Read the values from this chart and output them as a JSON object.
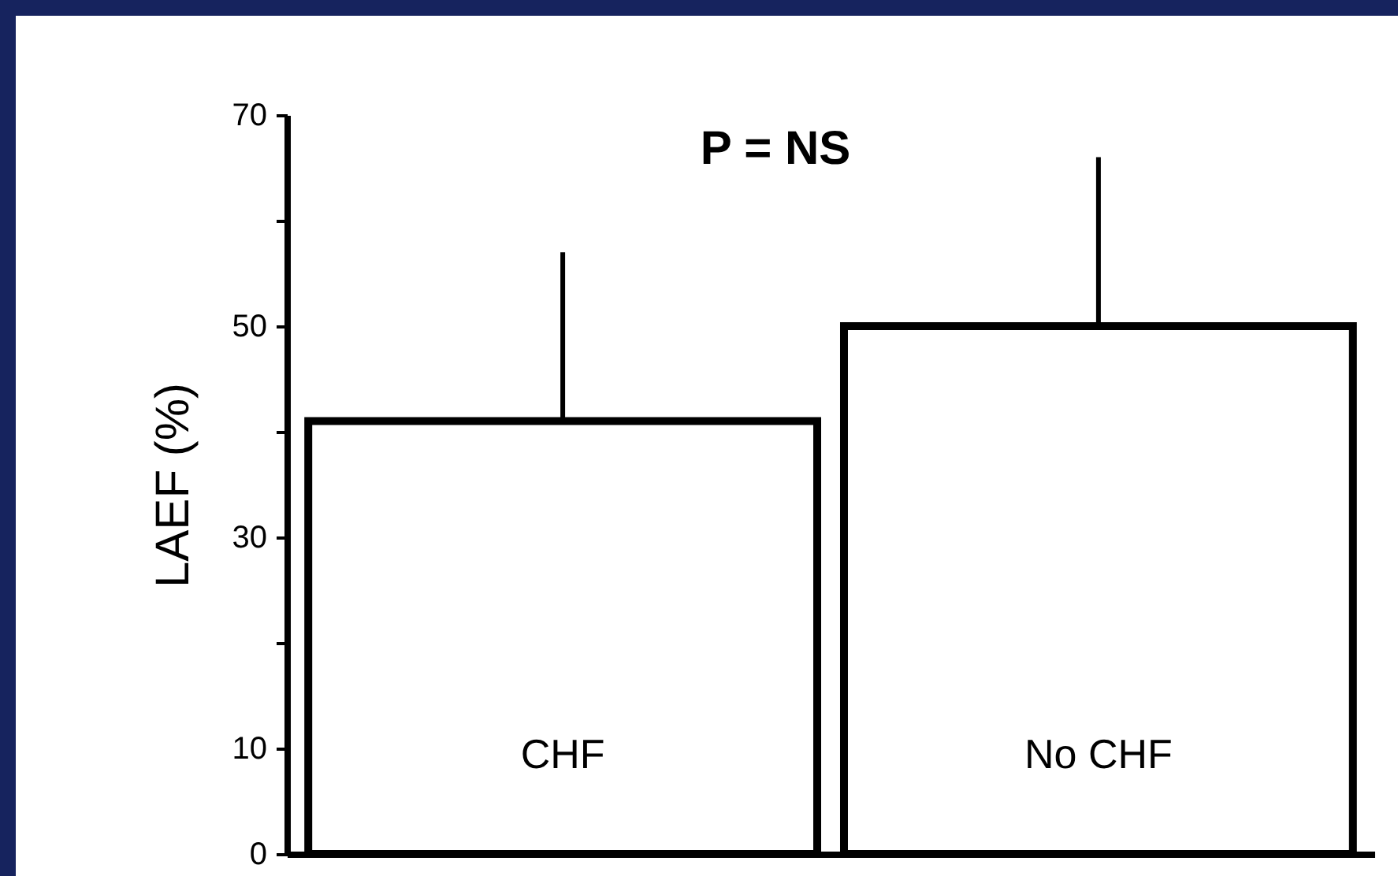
{
  "chart_data": {
    "type": "bar",
    "ylabel": "LAEF (%)",
    "annotations": [
      "P = NS"
    ],
    "categories": [
      "CHF",
      "No CHF"
    ],
    "values": [
      41,
      50
    ],
    "errors": [
      16,
      16
    ],
    "color": "#ffffff",
    "ylim": [
      0,
      70
    ],
    "yticks": [
      0,
      10,
      {
        "value": 20,
        "label": null
      },
      30,
      {
        "value": 40,
        "label": null
      },
      50,
      {
        "value": 60,
        "label": null
      },
      70
    ],
    "grid": false
  }
}
